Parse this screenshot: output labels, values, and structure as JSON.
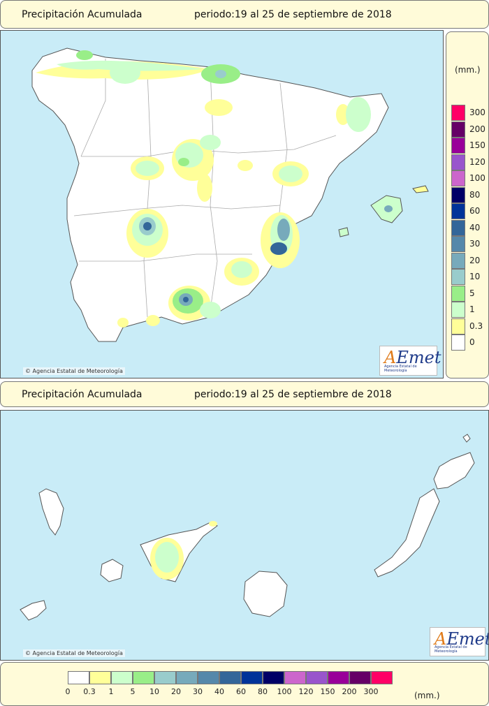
{
  "header_top": {
    "title": "Precipitación Acumulada",
    "period": "periodo:19 al 25 de septiembre de 2018"
  },
  "header_canary": {
    "title": "Precipitación Acumulada",
    "period": "periodo:19 al 25 de septiembre de 2018"
  },
  "credit": "Agencia Estatal de Meteorología",
  "logo": {
    "word": "AEmet",
    "sub": "Agencia Estatal de Meteorología"
  },
  "legend_unit": "(mm.)",
  "legend": [
    {
      "label": "0",
      "color": "#ffffff"
    },
    {
      "label": "0.3",
      "color": "#ffff99"
    },
    {
      "label": "1",
      "color": "#ccffcc"
    },
    {
      "label": "5",
      "color": "#99ee88"
    },
    {
      "label": "10",
      "color": "#99cccc"
    },
    {
      "label": "20",
      "color": "#77aabb"
    },
    {
      "label": "30",
      "color": "#5588aa"
    },
    {
      "label": "40",
      "color": "#336699"
    },
    {
      "label": "60",
      "color": "#003399"
    },
    {
      "label": "80",
      "color": "#000066"
    },
    {
      "label": "100",
      "color": "#cc66cc"
    },
    {
      "label": "120",
      "color": "#9955cc"
    },
    {
      "label": "150",
      "color": "#990099"
    },
    {
      "label": "200",
      "color": "#660066"
    },
    {
      "label": "300",
      "color": "#ff0066"
    }
  ],
  "colors": {
    "sea": "#c9ecf7",
    "land": "#ffffff",
    "panel": "#fffbd9",
    "border": "#888888"
  }
}
